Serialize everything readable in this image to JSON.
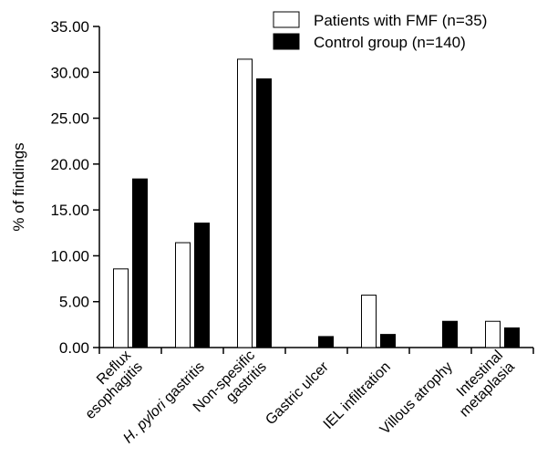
{
  "chart_data": {
    "type": "bar",
    "ylabel": "% of findings",
    "ylim": [
      0,
      35
    ],
    "yticks": [
      "0.00",
      "5.00",
      "10.00",
      "15.00",
      "20.00",
      "25.00",
      "30.00",
      "35.00"
    ],
    "categories": [
      {
        "lines": [
          "Reflux",
          "esophagitis"
        ]
      },
      {
        "lines": [
          "H. pylori gastritis"
        ],
        "italic_prefix": "H. pylori",
        "suffix": " gastritis"
      },
      {
        "lines": [
          "Non-spesific",
          "gastritis"
        ]
      },
      {
        "lines": [
          "Gastric ulcer"
        ]
      },
      {
        "lines": [
          "IEL infiltration"
        ]
      },
      {
        "lines": [
          "Villous atrophy"
        ]
      },
      {
        "lines": [
          "Intestinal",
          "metaplasia"
        ]
      }
    ],
    "series": [
      {
        "name": "Patients with FMF (n=35)",
        "fill": "#ffffff",
        "values": [
          8.57,
          11.43,
          31.43,
          0,
          5.71,
          0,
          2.86
        ]
      },
      {
        "name": "Control group (n=140)",
        "fill": "#000000",
        "values": [
          18.38,
          13.57,
          29.29,
          1.2,
          1.43,
          2.86,
          2.14
        ]
      }
    ],
    "legend_position": "top-right",
    "grid": false
  }
}
